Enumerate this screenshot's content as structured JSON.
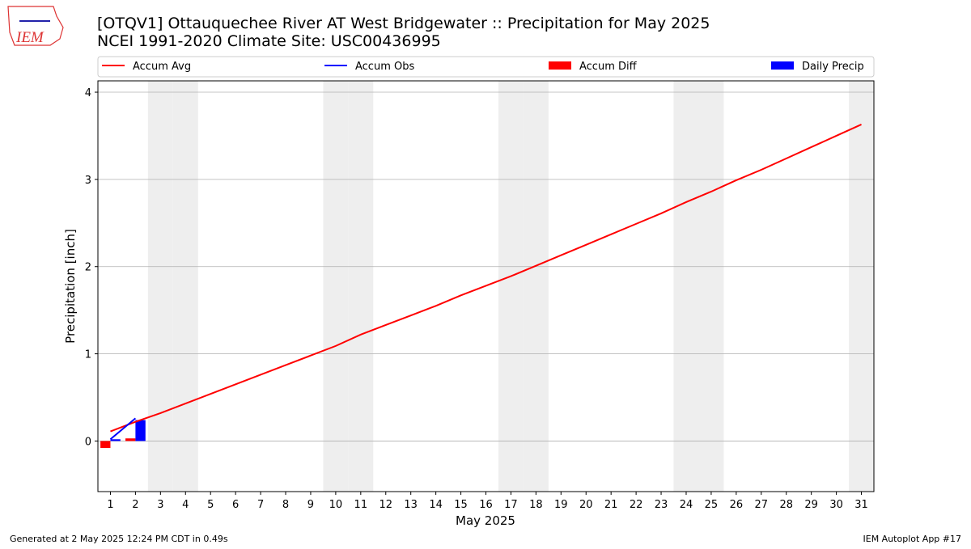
{
  "logo": "IEM",
  "chart_data": {
    "type": "line-bar",
    "title": "[OTQV1] Ottauquechee River  AT West Bridgewater :: Precipitation for May 2025",
    "subtitle": "NCEI 1991-2020 Climate Site: USC00436995",
    "xlabel": "May 2025",
    "ylabel": "Precipitation [inch]",
    "x": [
      1,
      2,
      3,
      4,
      5,
      6,
      7,
      8,
      9,
      10,
      11,
      12,
      13,
      14,
      15,
      16,
      17,
      18,
      19,
      20,
      21,
      22,
      23,
      24,
      25,
      26,
      27,
      28,
      29,
      30,
      31
    ],
    "xlim": [
      0.5,
      31.5
    ],
    "xticks": [
      1,
      2,
      3,
      4,
      5,
      6,
      7,
      8,
      9,
      10,
      11,
      12,
      13,
      14,
      15,
      16,
      17,
      18,
      19,
      20,
      21,
      22,
      23,
      24,
      25,
      26,
      27,
      28,
      29,
      30,
      31
    ],
    "ylim": [
      -0.58,
      4.13
    ],
    "yticks": [
      0,
      1,
      2,
      3,
      4
    ],
    "grid": true,
    "shaded_days": [
      3,
      4,
      10,
      11,
      17,
      18,
      24,
      25,
      31
    ],
    "shade_color": "#eeeeee",
    "series": [
      {
        "name": "Accum Avg",
        "kind": "line",
        "color": "#ff0000",
        "values": [
          0.11,
          0.22,
          0.32,
          0.43,
          0.54,
          0.65,
          0.76,
          0.87,
          0.98,
          1.09,
          1.22,
          1.33,
          1.44,
          1.55,
          1.67,
          1.78,
          1.89,
          2.01,
          2.13,
          2.25,
          2.37,
          2.49,
          2.61,
          2.74,
          2.86,
          2.99,
          3.11,
          3.24,
          3.37,
          3.5,
          3.63
        ]
      },
      {
        "name": "Accum Obs",
        "kind": "line",
        "color": "#0000ff",
        "values": [
          0.02,
          0.26,
          null,
          null,
          null,
          null,
          null,
          null,
          null,
          null,
          null,
          null,
          null,
          null,
          null,
          null,
          null,
          null,
          null,
          null,
          null,
          null,
          null,
          null,
          null,
          null,
          null,
          null,
          null,
          null,
          null
        ]
      },
      {
        "name": "Accum Diff",
        "kind": "bar",
        "offset": "left",
        "color": "#ff0000",
        "values": [
          -0.08,
          0.03,
          null,
          null,
          null,
          null,
          null,
          null,
          null,
          null,
          null,
          null,
          null,
          null,
          null,
          null,
          null,
          null,
          null,
          null,
          null,
          null,
          null,
          null,
          null,
          null,
          null,
          null,
          null,
          null,
          null
        ]
      },
      {
        "name": "Daily Precip",
        "kind": "bar",
        "offset": "right",
        "color": "#0000ff",
        "values": [
          0.02,
          0.24,
          null,
          null,
          null,
          null,
          null,
          null,
          null,
          null,
          null,
          null,
          null,
          null,
          null,
          null,
          null,
          null,
          null,
          null,
          null,
          null,
          null,
          null,
          null,
          null,
          null,
          null,
          null,
          null,
          null
        ]
      }
    ],
    "footer_left": "Generated at 2 May 2025 12:24 PM CDT in 0.49s",
    "footer_right": "IEM Autoplot App #17"
  }
}
